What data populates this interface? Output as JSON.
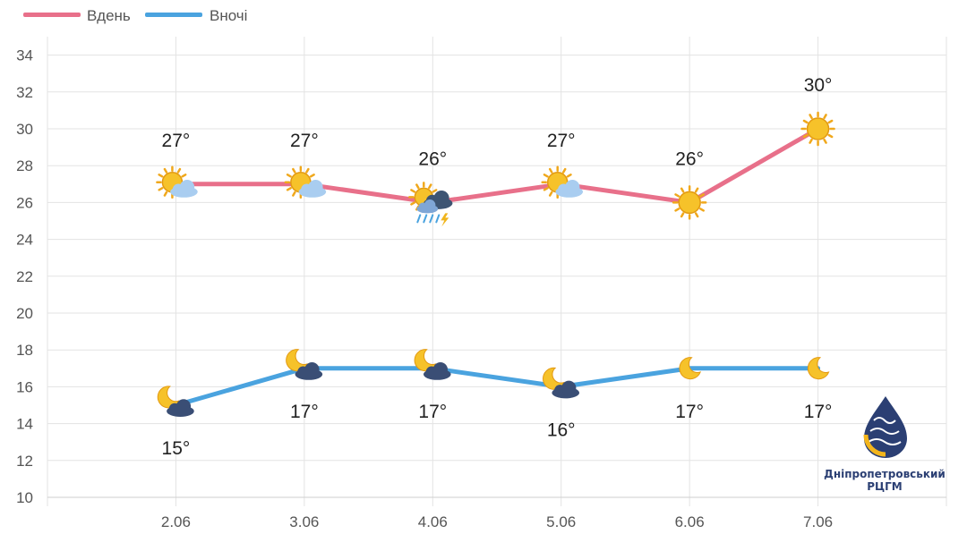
{
  "chart_data": {
    "type": "line",
    "categories": [
      "2.06",
      "3.06",
      "4.06",
      "5.06",
      "6.06",
      "7.06"
    ],
    "series": [
      {
        "name": "Вдень",
        "color": "#e8708a",
        "values": [
          27,
          27,
          26,
          27,
          26,
          30
        ],
        "labels": [
          "27°",
          "27°",
          "26°",
          "27°",
          "26°",
          "30°"
        ],
        "icons": [
          "sun-behind-cloud-icon",
          "sun-behind-cloud-icon",
          "thunderstorm-rain-icon",
          "sun-behind-cloud-icon",
          "sun-icon",
          "sun-icon"
        ]
      },
      {
        "name": "Вночі",
        "color": "#4aa3df",
        "values": [
          15,
          17,
          17,
          16,
          17,
          17
        ],
        "labels": [
          "15°",
          "17°",
          "17°",
          "16°",
          "17°",
          "17°"
        ],
        "icons": [
          "moon-cloudy-icon",
          "moon-cloudy-icon",
          "moon-cloudy-icon",
          "moon-cloudy-icon",
          "moon-icon",
          "moon-icon"
        ]
      }
    ],
    "yticks": [
      10,
      12,
      14,
      16,
      18,
      20,
      22,
      24,
      26,
      28,
      30,
      32,
      34
    ],
    "ylim": [
      10,
      35
    ],
    "grid": true,
    "legend_position": "top-left"
  },
  "logo": {
    "line1": "Дніпропетровський",
    "line2": "РЦГМ"
  }
}
